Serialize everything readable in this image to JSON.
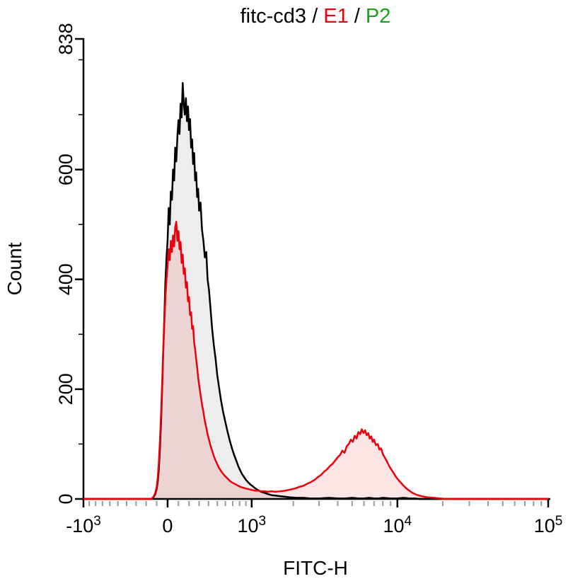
{
  "title": {
    "full": "fitc-cd3 / E1 / P2"
  },
  "chart_data": {
    "type": "area",
    "title": "fitc-cd3 / E1 / P2",
    "title_segments": [
      {
        "text": "fitc-cd3",
        "color": "#000000"
      },
      {
        "text": " / ",
        "color": "#000000"
      },
      {
        "text": "E1",
        "color": "#e8000b"
      },
      {
        "text": " / ",
        "color": "#000000"
      },
      {
        "text": "P2",
        "color": "#1aa01a"
      }
    ],
    "xlabel": "FITC-H",
    "ylabel": "Count",
    "background": "#ffffff",
    "axis_color": "#000000",
    "minor_tick_color": "#9a9a9a",
    "x_scale": {
      "type": "asinh",
      "cofactor": 600,
      "min": -1000,
      "max": 100000
    },
    "y_scale": {
      "type": "linear",
      "min": 0,
      "max": 838
    },
    "y_major_ticks": [
      {
        "v": 0,
        "label": "0"
      },
      {
        "v": 200,
        "label": "200"
      },
      {
        "v": 400,
        "label": "400"
      },
      {
        "v": 600,
        "label": "600"
      },
      {
        "v": 838,
        "label": "838"
      }
    ],
    "y_minor_ticks": [
      100,
      300,
      500,
      700,
      800
    ],
    "x_major_ticks": [
      {
        "v": -1000,
        "base": "-10",
        "exp": "3"
      },
      {
        "v": 0,
        "base": "0",
        "exp": ""
      },
      {
        "v": 1000,
        "base": "10",
        "exp": "3"
      },
      {
        "v": 10000,
        "base": "10",
        "exp": "4"
      },
      {
        "v": 100000,
        "base": "10",
        "exp": "5"
      }
    ],
    "x_minor_ticks": [
      -900,
      -800,
      -700,
      -600,
      -500,
      -400,
      -300,
      -200,
      -100,
      100,
      200,
      300,
      400,
      500,
      600,
      700,
      800,
      900,
      2000,
      3000,
      4000,
      5000,
      6000,
      7000,
      8000,
      9000,
      20000,
      30000,
      40000,
      50000,
      60000,
      70000,
      80000,
      90000
    ],
    "series": [
      {
        "name": "black-histogram",
        "color": "#000000",
        "fill": "rgba(0,0,0,0.07)",
        "peak_count": 758,
        "points": [
          [
            -1000,
            0
          ],
          [
            -200,
            0
          ],
          [
            -150,
            0
          ],
          [
            -130,
            3
          ],
          [
            -115,
            8
          ],
          [
            -100,
            18
          ],
          [
            -90,
            32
          ],
          [
            -80,
            55
          ],
          [
            -70,
            92
          ],
          [
            -60,
            140
          ],
          [
            -50,
            200
          ],
          [
            -40,
            265
          ],
          [
            -30,
            330
          ],
          [
            -20,
            395
          ],
          [
            -10,
            440
          ],
          [
            0,
            470
          ],
          [
            10,
            530
          ],
          [
            20,
            500
          ],
          [
            30,
            560
          ],
          [
            40,
            545
          ],
          [
            50,
            600
          ],
          [
            60,
            580
          ],
          [
            70,
            640
          ],
          [
            80,
            615
          ],
          [
            90,
            660
          ],
          [
            100,
            690
          ],
          [
            110,
            665
          ],
          [
            120,
            720
          ],
          [
            130,
            695
          ],
          [
            140,
            758
          ],
          [
            150,
            720
          ],
          [
            160,
            700
          ],
          [
            170,
            730
          ],
          [
            180,
            688
          ],
          [
            190,
            715
          ],
          [
            200,
            672
          ],
          [
            210,
            692
          ],
          [
            220,
            640
          ],
          [
            230,
            655
          ],
          [
            240,
            610
          ],
          [
            250,
            630
          ],
          [
            260,
            580
          ],
          [
            270,
            595
          ],
          [
            280,
            550
          ],
          [
            290,
            565
          ],
          [
            300,
            525
          ],
          [
            315,
            540
          ],
          [
            330,
            490
          ],
          [
            345,
            470
          ],
          [
            360,
            440
          ],
          [
            375,
            450
          ],
          [
            390,
            400
          ],
          [
            405,
            380
          ],
          [
            420,
            350
          ],
          [
            440,
            310
          ],
          [
            460,
            280
          ],
          [
            480,
            255
          ],
          [
            500,
            225
          ],
          [
            520,
            205
          ],
          [
            545,
            180
          ],
          [
            570,
            160
          ],
          [
            600,
            140
          ],
          [
            630,
            122
          ],
          [
            660,
            106
          ],
          [
            690,
            92
          ],
          [
            720,
            80
          ],
          [
            750,
            70
          ],
          [
            780,
            60
          ],
          [
            810,
            52
          ],
          [
            840,
            45
          ],
          [
            870,
            40
          ],
          [
            900,
            35
          ],
          [
            940,
            30
          ],
          [
            980,
            26
          ],
          [
            1020,
            23
          ],
          [
            1070,
            19
          ],
          [
            1120,
            16
          ],
          [
            1180,
            13
          ],
          [
            1250,
            11
          ],
          [
            1320,
            9
          ],
          [
            1400,
            7
          ],
          [
            1500,
            6
          ],
          [
            1620,
            5
          ],
          [
            1750,
            4
          ],
          [
            1900,
            3
          ],
          [
            2100,
            2
          ],
          [
            2350,
            2
          ],
          [
            2600,
            1
          ],
          [
            3000,
            1
          ],
          [
            3500,
            2
          ],
          [
            4000,
            1
          ],
          [
            4500,
            1
          ],
          [
            5000,
            2
          ],
          [
            5500,
            1
          ],
          [
            6000,
            1
          ],
          [
            6500,
            2
          ],
          [
            7000,
            1
          ],
          [
            7500,
            1
          ],
          [
            8000,
            2
          ],
          [
            9000,
            1
          ],
          [
            10000,
            1
          ],
          [
            11000,
            2
          ],
          [
            12000,
            1
          ],
          [
            13000,
            1
          ],
          [
            14000,
            0
          ],
          [
            100000,
            0
          ]
        ]
      },
      {
        "name": "red-histogram",
        "color": "#e8000b",
        "fill": "rgba(232,0,11,0.10)",
        "peak_count": 505,
        "second_peak_count": 127,
        "points": [
          [
            -1000,
            0
          ],
          [
            -200,
            0
          ],
          [
            -150,
            0
          ],
          [
            -130,
            4
          ],
          [
            -115,
            10
          ],
          [
            -100,
            22
          ],
          [
            -90,
            40
          ],
          [
            -80,
            68
          ],
          [
            -70,
            105
          ],
          [
            -60,
            155
          ],
          [
            -50,
            210
          ],
          [
            -40,
            268
          ],
          [
            -30,
            320
          ],
          [
            -20,
            365
          ],
          [
            -10,
            400
          ],
          [
            0,
            425
          ],
          [
            10,
            455
          ],
          [
            20,
            435
          ],
          [
            30,
            470
          ],
          [
            40,
            450
          ],
          [
            50,
            480
          ],
          [
            60,
            460
          ],
          [
            70,
            495
          ],
          [
            80,
            505
          ],
          [
            90,
            470
          ],
          [
            100,
            488
          ],
          [
            110,
            455
          ],
          [
            120,
            468
          ],
          [
            130,
            430
          ],
          [
            140,
            445
          ],
          [
            150,
            410
          ],
          [
            160,
            420
          ],
          [
            170,
            385
          ],
          [
            180,
            395
          ],
          [
            190,
            360
          ],
          [
            200,
            368
          ],
          [
            210,
            335
          ],
          [
            220,
            340
          ],
          [
            230,
            310
          ],
          [
            240,
            315
          ],
          [
            250,
            285
          ],
          [
            260,
            272
          ],
          [
            270,
            255
          ],
          [
            280,
            240
          ],
          [
            290,
            222
          ],
          [
            300,
            208
          ],
          [
            315,
            190
          ],
          [
            330,
            172
          ],
          [
            345,
            158
          ],
          [
            360,
            142
          ],
          [
            375,
            130
          ],
          [
            390,
            118
          ],
          [
            405,
            108
          ],
          [
            420,
            98
          ],
          [
            440,
            88
          ],
          [
            460,
            78
          ],
          [
            480,
            70
          ],
          [
            500,
            63
          ],
          [
            520,
            57
          ],
          [
            545,
            51
          ],
          [
            570,
            46
          ],
          [
            600,
            41
          ],
          [
            630,
            37
          ],
          [
            660,
            33
          ],
          [
            690,
            30
          ],
          [
            720,
            28
          ],
          [
            750,
            26
          ],
          [
            780,
            24
          ],
          [
            810,
            22
          ],
          [
            840,
            21
          ],
          [
            870,
            20
          ],
          [
            900,
            19
          ],
          [
            940,
            18
          ],
          [
            980,
            17
          ],
          [
            1020,
            16
          ],
          [
            1070,
            15
          ],
          [
            1120,
            15
          ],
          [
            1180,
            14
          ],
          [
            1250,
            14
          ],
          [
            1320,
            13
          ],
          [
            1400,
            14
          ],
          [
            1500,
            13
          ],
          [
            1620,
            14
          ],
          [
            1750,
            15
          ],
          [
            1900,
            17
          ],
          [
            2050,
            19
          ],
          [
            2200,
            22
          ],
          [
            2350,
            24
          ],
          [
            2500,
            28
          ],
          [
            2650,
            31
          ],
          [
            2800,
            35
          ],
          [
            2950,
            40
          ],
          [
            3100,
            44
          ],
          [
            3250,
            50
          ],
          [
            3400,
            54
          ],
          [
            3550,
            60
          ],
          [
            3700,
            64
          ],
          [
            3850,
            70
          ],
          [
            4000,
            76
          ],
          [
            4150,
            80
          ],
          [
            4300,
            88
          ],
          [
            4450,
            84
          ],
          [
            4600,
            96
          ],
          [
            4750,
            100
          ],
          [
            4900,
            108
          ],
          [
            5050,
            104
          ],
          [
            5200,
            115
          ],
          [
            5350,
            110
          ],
          [
            5500,
            122
          ],
          [
            5650,
            118
          ],
          [
            5800,
            127
          ],
          [
            5950,
            120
          ],
          [
            6100,
            125
          ],
          [
            6250,
            116
          ],
          [
            6400,
            120
          ],
          [
            6550,
            110
          ],
          [
            6700,
            114
          ],
          [
            6850,
            104
          ],
          [
            7000,
            108
          ],
          [
            7200,
            98
          ],
          [
            7400,
            100
          ],
          [
            7600,
            90
          ],
          [
            7800,
            92
          ],
          [
            8000,
            82
          ],
          [
            8300,
            74
          ],
          [
            8600,
            66
          ],
          [
            8900,
            58
          ],
          [
            9200,
            52
          ],
          [
            9500,
            46
          ],
          [
            9800,
            40
          ],
          [
            10200,
            34
          ],
          [
            10600,
            29
          ],
          [
            11000,
            24
          ],
          [
            11500,
            19
          ],
          [
            12000,
            15
          ],
          [
            12600,
            11
          ],
          [
            13300,
            8
          ],
          [
            14000,
            6
          ],
          [
            15000,
            4
          ],
          [
            16000,
            3
          ],
          [
            17500,
            2
          ],
          [
            19000,
            1
          ],
          [
            21000,
            0
          ],
          [
            100000,
            0
          ]
        ]
      }
    ]
  }
}
